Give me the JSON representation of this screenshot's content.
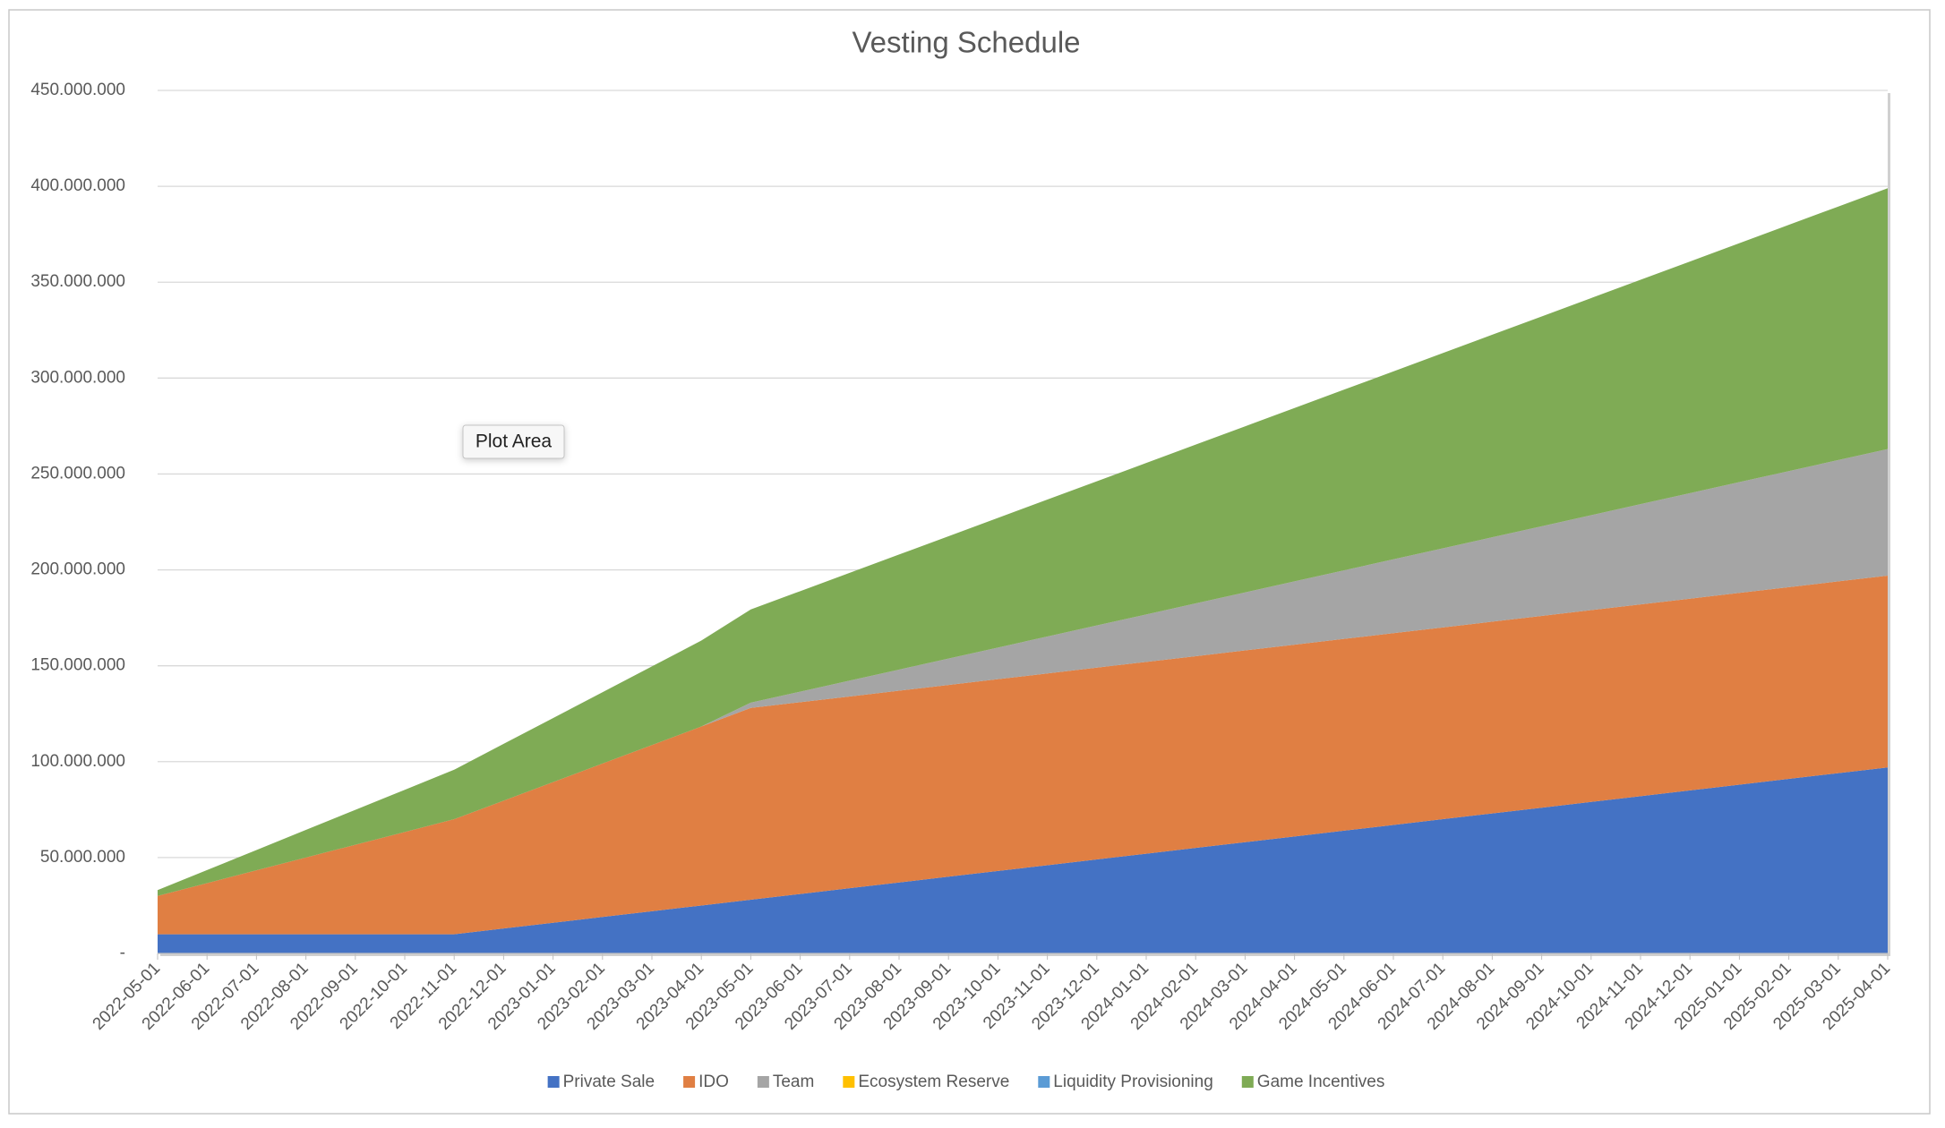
{
  "chart_data": {
    "type": "stacked_area",
    "title": "Vesting Schedule",
    "annotation": "Plot Area",
    "categories": [
      "2022-05-01",
      "2022-06-01",
      "2022-07-01",
      "2022-08-01",
      "2022-09-01",
      "2022-10-01",
      "2022-11-01",
      "2022-12-01",
      "2023-01-01",
      "2023-02-01",
      "2023-03-01",
      "2023-04-01",
      "2023-05-01",
      "2023-06-01",
      "2023-07-01",
      "2023-08-01",
      "2023-09-01",
      "2023-10-01",
      "2023-11-01",
      "2023-12-01",
      "2024-01-01",
      "2024-02-01",
      "2024-03-01",
      "2024-04-01",
      "2024-05-01",
      "2024-06-01",
      "2024-07-01",
      "2024-08-01",
      "2024-09-01",
      "2024-10-01",
      "2024-11-01",
      "2024-12-01",
      "2025-01-01",
      "2025-02-01",
      "2025-03-01",
      "2025-04-01"
    ],
    "series": [
      {
        "name": "Private Sale",
        "color": "#4472c4",
        "values": [
          10000000,
          10000000,
          10000000,
          10000000,
          10000000,
          10000000,
          10000000,
          13000000,
          16000000,
          19000000,
          22000000,
          25000000,
          28000000,
          31000000,
          34000000,
          37000000,
          40000000,
          43000000,
          46000000,
          49000000,
          52000000,
          55000000,
          58000000,
          61000000,
          64000000,
          67000000,
          70000000,
          73000000,
          76000000,
          79000000,
          82000000,
          85000000,
          88000000,
          91000000,
          94000000,
          97000000
        ]
      },
      {
        "name": "IDO",
        "color": "#e07f43",
        "values": [
          20000000,
          26666667,
          33333333,
          40000000,
          46666667,
          53333333,
          60000000,
          66666667,
          73333333,
          80000000,
          86666667,
          93333333,
          100000000,
          100000000,
          100000000,
          100000000,
          100000000,
          100000000,
          100000000,
          100000000,
          100000000,
          100000000,
          100000000,
          100000000,
          100000000,
          100000000,
          100000000,
          100000000,
          100000000,
          100000000,
          100000000,
          100000000,
          100000000,
          100000000,
          100000000,
          100000000
        ]
      },
      {
        "name": "Team",
        "color": "#a5a5a5",
        "values": [
          0,
          0,
          0,
          0,
          0,
          0,
          0,
          0,
          0,
          0,
          0,
          0,
          2750000,
          5500000,
          8250000,
          11000000,
          13750000,
          16500000,
          19250000,
          22000000,
          24750000,
          27500000,
          30250000,
          33000000,
          35750000,
          38500000,
          41250000,
          44000000,
          46750000,
          49500000,
          52250000,
          55000000,
          57750000,
          60500000,
          63250000,
          66000000
        ]
      },
      {
        "name": "Ecosystem Reserve",
        "color": "#ffc000",
        "values": [
          0,
          0,
          0,
          0,
          0,
          0,
          0,
          0,
          0,
          0,
          0,
          0,
          0,
          0,
          0,
          0,
          0,
          0,
          0,
          0,
          0,
          0,
          0,
          0,
          0,
          0,
          0,
          0,
          0,
          0,
          0,
          0,
          0,
          0,
          0,
          0
        ]
      },
      {
        "name": "Liquidity Provisioning",
        "color": "#5b9bd5",
        "values": [
          0,
          0,
          0,
          0,
          0,
          0,
          0,
          0,
          0,
          0,
          0,
          0,
          0,
          0,
          0,
          0,
          0,
          0,
          0,
          0,
          0,
          0,
          0,
          0,
          0,
          0,
          0,
          0,
          0,
          0,
          0,
          0,
          0,
          0,
          0,
          0
        ]
      },
      {
        "name": "Game Incentives",
        "color": "#7fab55",
        "values": [
          3000000,
          6800000,
          10600000,
          14400000,
          18200000,
          22000000,
          25800000,
          29600000,
          33400000,
          37200000,
          41000000,
          44800000,
          48600000,
          52400000,
          56200000,
          60000000,
          63800000,
          67600000,
          71400000,
          75200000,
          79000000,
          82800000,
          86600000,
          90400000,
          94200000,
          98000000,
          101800000,
          105600000,
          109400000,
          113200000,
          117000000,
          120800000,
          124600000,
          128400000,
          132200000,
          136000000
        ]
      }
    ],
    "ylim": [
      0,
      450000000
    ],
    "yticks": [
      {
        "value": 0,
        "label": "-"
      },
      {
        "value": 50000000,
        "label": "50.000.000"
      },
      {
        "value": 100000000,
        "label": "100.000.000"
      },
      {
        "value": 150000000,
        "label": "150.000.000"
      },
      {
        "value": 200000000,
        "label": "200.000.000"
      },
      {
        "value": 250000000,
        "label": "250.000.000"
      },
      {
        "value": 300000000,
        "label": "300.000.000"
      },
      {
        "value": 350000000,
        "label": "350.000.000"
      },
      {
        "value": 400000000,
        "label": "400.000.000"
      },
      {
        "value": 450000000,
        "label": "450.000.000"
      }
    ],
    "grid": true
  }
}
